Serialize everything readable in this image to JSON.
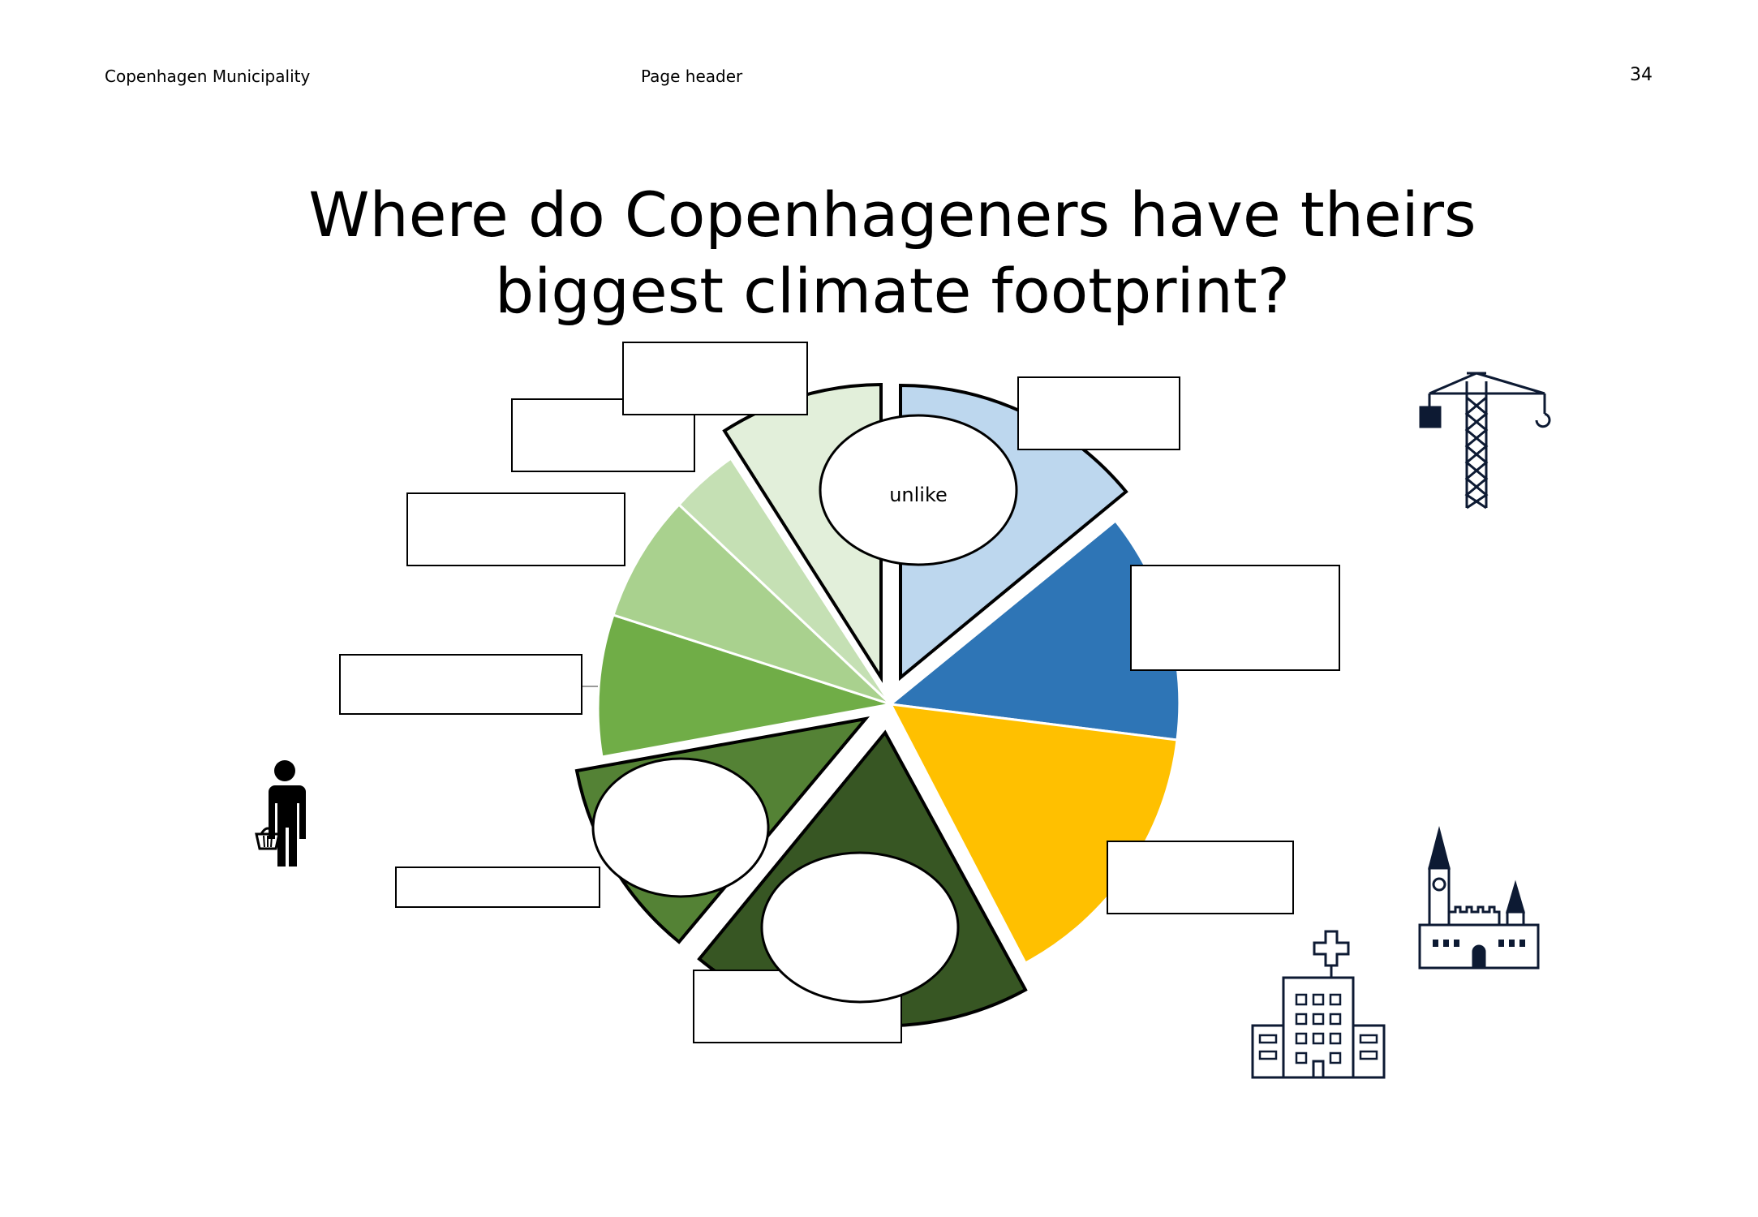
{
  "header": {
    "organization": "Copenhagen Municipality",
    "center": "Page header",
    "page_number": "34"
  },
  "title": {
    "line1": "Where do Copenhageners have theirs",
    "line2": "biggest climate footprint?"
  },
  "oval_labels": [
    "unlike",
    "",
    ""
  ],
  "colors": {
    "light_blue": "#bdd7ee",
    "blue": "#2e75b6",
    "yellow": "#ffc000",
    "dark_green": "#375623",
    "green": "#548235",
    "medium_green": "#70ad47",
    "light_green": "#a9d18e",
    "pale_green": "#c5e0b4",
    "palest_green": "#e2efda",
    "icon_navy": "#0d1a33"
  },
  "icons": [
    "crane-icon",
    "person-with-basket-icon",
    "church-icon",
    "hospital-icon"
  ]
}
